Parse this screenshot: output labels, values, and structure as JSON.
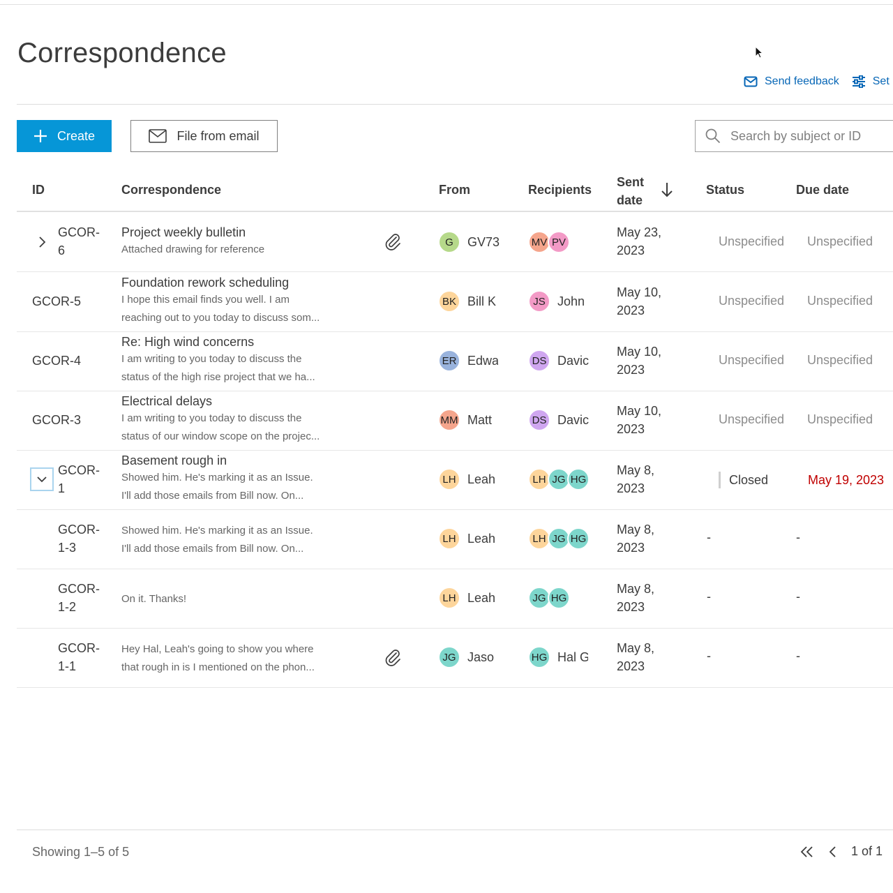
{
  "page": {
    "title": "Correspondence",
    "send_feedback": "Send feedback",
    "settings": "Set"
  },
  "toolbar": {
    "create_label": "Create",
    "file_from_email_label": "File from email",
    "search_placeholder": "Search by subject or ID"
  },
  "columns": {
    "id": "ID",
    "correspondence": "Correspondence",
    "from": "From",
    "recipients": "Recipients",
    "sent_line1": "Sent",
    "sent_line2": "date",
    "status": "Status",
    "due": "Due date"
  },
  "colors": {
    "primary": "#0696d7",
    "link": "#0666b6",
    "overdue": "#c00000"
  },
  "rows": [
    {
      "id1": "GCOR-",
      "id2": "6",
      "subject": "Project weekly bulletin",
      "preview1": "Attached drawing for reference",
      "preview2": "",
      "from_initials": "G",
      "from_color": "#b6d98a",
      "from_name": "GV73",
      "rec": [
        {
          "i": "MV",
          "c": "#f5a58c"
        },
        {
          "i": "PV",
          "c": "#f39ac6"
        }
      ],
      "rec_name": "",
      "date1": "May 23,",
      "date2": "2023",
      "status": "Unspecified",
      "due": "Unspecified"
    },
    {
      "id": "GCOR-5",
      "subject": "Foundation rework scheduling",
      "preview1": "I hope this email finds you well. I am",
      "preview2": "reaching out to you today to discuss som...",
      "from_initials": "BK",
      "from_color": "#fdd59b",
      "from_name": "Bill K",
      "rec": [
        {
          "i": "JS",
          "c": "#f39ac6"
        }
      ],
      "rec_name": "John",
      "date1": "May 10,",
      "date2": "2023",
      "status": "Unspecified",
      "due": "Unspecified"
    },
    {
      "id": "GCOR-4",
      "subject": "Re: High wind concerns",
      "preview1": "I am writing to you today to discuss the",
      "preview2": "status of the high rise project that we ha...",
      "from_initials": "ER",
      "from_color": "#99b3dd",
      "from_name": "Edwa",
      "rec": [
        {
          "i": "DS",
          "c": "#cfa6f0"
        }
      ],
      "rec_name": "Davic",
      "date1": "May 10,",
      "date2": "2023",
      "status": "Unspecified",
      "due": "Unspecified"
    },
    {
      "id": "GCOR-3",
      "subject": "Electrical delays",
      "preview1": "I am writing to you today to discuss the",
      "preview2": "status of our window scope on the projec...",
      "from_initials": "MM",
      "from_color": "#f5a58c",
      "from_name": "Matt",
      "rec": [
        {
          "i": "DS",
          "c": "#cfa6f0"
        }
      ],
      "rec_name": "Davic",
      "date1": "May 10,",
      "date2": "2023",
      "status": "Unspecified",
      "due": "Unspecified"
    },
    {
      "id1": "GCOR-",
      "id2": "1",
      "subject": "Basement rough in",
      "preview1": "Showed him. He's marking it as an Issue.",
      "preview2": "I'll add those emails from Bill now. On...",
      "from_initials": "LH",
      "from_color": "#fdd59b",
      "from_name": "Leah",
      "rec": [
        {
          "i": "LH",
          "c": "#fdd59b"
        },
        {
          "i": "JG",
          "c": "#7dd6cb"
        },
        {
          "i": "HG",
          "c": "#7dd6cb"
        }
      ],
      "rec_name": "",
      "date1": "May 8,",
      "date2": "2023",
      "status": "Closed",
      "due": "May 19, 2023"
    },
    {
      "id1": "GCOR-",
      "id2": "1-3",
      "subject": "",
      "preview1": "Showed him. He's marking it as an Issue.",
      "preview2": "I'll add those emails from Bill now. On...",
      "from_initials": "LH",
      "from_color": "#fdd59b",
      "from_name": "Leah",
      "rec": [
        {
          "i": "LH",
          "c": "#fdd59b"
        },
        {
          "i": "JG",
          "c": "#7dd6cb"
        },
        {
          "i": "HG",
          "c": "#7dd6cb"
        }
      ],
      "rec_name": "",
      "date1": "May 8,",
      "date2": "2023",
      "status": "-",
      "due": "-"
    },
    {
      "id1": "GCOR-",
      "id2": "1-2",
      "subject": "",
      "preview1": "On it. Thanks!",
      "preview2": "",
      "from_initials": "LH",
      "from_color": "#fdd59b",
      "from_name": "Leah",
      "rec": [
        {
          "i": "JG",
          "c": "#7dd6cb"
        },
        {
          "i": "HG",
          "c": "#7dd6cb"
        }
      ],
      "rec_name": "",
      "date1": "May 8,",
      "date2": "2023",
      "status": "-",
      "due": "-"
    },
    {
      "id1": "GCOR-",
      "id2": "1-1",
      "subject": "",
      "preview1": "Hey Hal, Leah's going to show you where",
      "preview2": "that rough in is I mentioned on the phon...",
      "from_initials": "JG",
      "from_color": "#7dd6cb",
      "from_name": "Jaso",
      "rec": [
        {
          "i": "HG",
          "c": "#7dd6cb"
        }
      ],
      "rec_name": "Hal G",
      "date1": "May 8,",
      "date2": "2023",
      "status": "-",
      "due": "-"
    }
  ],
  "footer": {
    "showing": "Showing 1–5 of 5",
    "page_text": "1 of 1"
  }
}
